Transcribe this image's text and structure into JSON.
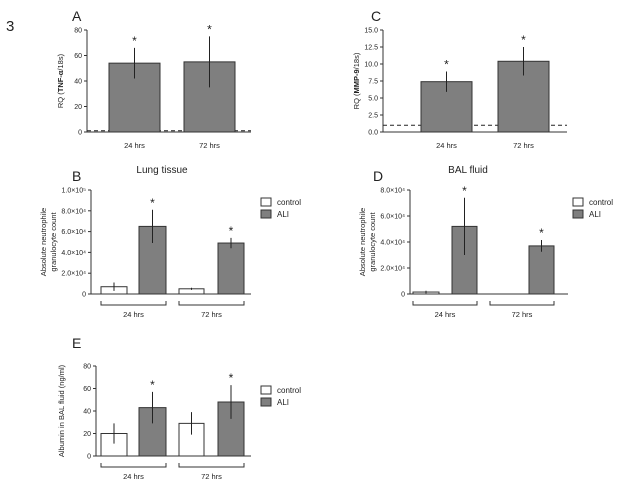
{
  "figure_number": "3",
  "chart_data": [
    {
      "panel": "A",
      "type": "bar",
      "categories": [
        "24 hrs",
        "72 hrs"
      ],
      "series": [
        {
          "values": [
            54,
            55
          ],
          "errors": [
            12,
            20
          ],
          "significant": [
            true,
            true
          ]
        }
      ],
      "ylabel_prefix": "RQ (",
      "ylabel_bold": "TNF-α",
      "ylabel_suffix": "/18s)",
      "ylim": [
        0,
        80
      ],
      "yticks": [
        "0",
        "20",
        "40",
        "60",
        "80"
      ],
      "reference_line": 1,
      "grid": false,
      "colors": {
        "bar": "#7f7f7f"
      }
    },
    {
      "panel": "C",
      "type": "bar",
      "categories": [
        "24 hrs",
        "72 hrs"
      ],
      "series": [
        {
          "values": [
            7.4,
            10.4
          ],
          "errors": [
            1.5,
            2.1
          ],
          "significant": [
            true,
            true
          ]
        }
      ],
      "ylabel_prefix": "RQ (",
      "ylabel_bold": "MMP-9",
      "ylabel_suffix": "/18s)",
      "ylim": [
        0,
        15
      ],
      "yticks": [
        "0.0",
        "2.5",
        "5.0",
        "7.5",
        "10.0",
        "12.5",
        "15.0"
      ],
      "reference_line": 1,
      "grid": false,
      "colors": {
        "bar": "#7f7f7f"
      }
    },
    {
      "panel": "B",
      "type": "bar",
      "title": "Lung tissue",
      "categories": [
        "24 hrs",
        "72 hrs"
      ],
      "series": [
        {
          "name": "control",
          "values": [
            7000,
            5000
          ],
          "errors": [
            4000,
            1000
          ],
          "significant": [
            false,
            false
          ]
        },
        {
          "name": "ALI",
          "values": [
            65000,
            49000
          ],
          "errors": [
            16000,
            5000
          ],
          "significant": [
            true,
            true
          ]
        }
      ],
      "ylabel_lines": [
        "Absolute neutrophile",
        "granulocyte count"
      ],
      "ylim": [
        0,
        100000
      ],
      "yticks": [
        "0",
        "2.0×10⁴",
        "4.0×10⁴",
        "6.0×10⁴",
        "8.0×10⁴",
        "1.0×10⁵"
      ],
      "legend": "right",
      "grid": false,
      "colors": {
        "control": "#ffffff",
        "ALI": "#7f7f7f"
      }
    },
    {
      "panel": "D",
      "type": "bar",
      "title": "BAL fluid",
      "categories": [
        "24 hrs",
        "72 hrs"
      ],
      "series": [
        {
          "name": "control",
          "values": [
            1500,
            0
          ],
          "errors": [
            1000,
            0
          ],
          "significant": [
            false,
            false
          ]
        },
        {
          "name": "ALI",
          "values": [
            52000,
            37000
          ],
          "errors": [
            22000,
            4500
          ],
          "significant": [
            true,
            true
          ]
        }
      ],
      "ylabel_lines": [
        "Absolute neutrophile",
        "granulocyte count"
      ],
      "ylim": [
        0,
        80000
      ],
      "yticks": [
        "0",
        "2.0×10⁴",
        "4.0×10⁴",
        "6.0×10⁴",
        "8.0×10⁴"
      ],
      "legend": "right",
      "grid": false,
      "colors": {
        "control": "#ffffff",
        "ALI": "#7f7f7f"
      }
    },
    {
      "panel": "E",
      "type": "bar",
      "categories": [
        "24 hrs",
        "72 hrs"
      ],
      "series": [
        {
          "name": "control",
          "values": [
            20,
            29
          ],
          "errors": [
            9,
            10
          ],
          "significant": [
            false,
            false
          ]
        },
        {
          "name": "ALI",
          "values": [
            43,
            48
          ],
          "errors": [
            14,
            15
          ],
          "significant": [
            true,
            true
          ]
        }
      ],
      "ylabel_lines": [
        "Albumin in BAL fluid (ng/ml)"
      ],
      "ylim": [
        0,
        80
      ],
      "yticks": [
        "0",
        "20",
        "40",
        "60",
        "80"
      ],
      "legend": "right",
      "grid": false,
      "colors": {
        "control": "#ffffff",
        "ALI": "#7f7f7f"
      }
    }
  ]
}
